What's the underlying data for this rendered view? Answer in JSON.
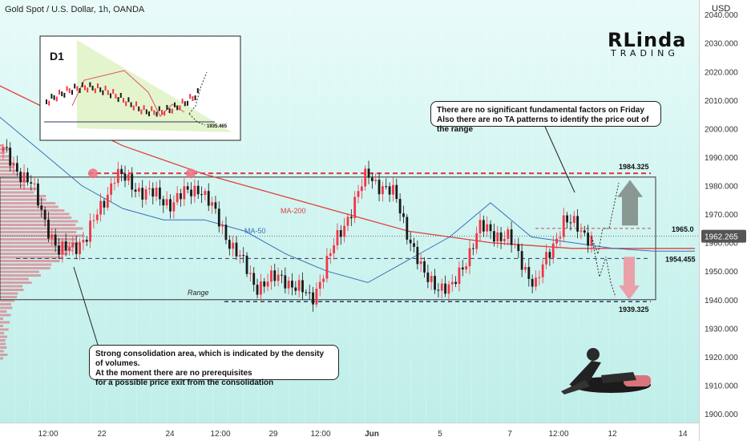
{
  "header": {
    "title": "Gold Spot / U.S. Dollar, 1h, OANDA"
  },
  "currency": "USD",
  "logo": {
    "main": "RLinda",
    "sub": "TRADING"
  },
  "inset": {
    "label": "D1",
    "price_label": "1935.465"
  },
  "notes": {
    "top_right": [
      "There are no significant fundamental factors on Friday",
      "Also there are no TA patterns to identify the price out of the range"
    ],
    "bottom_left": [
      "Strong consolidation area, which is indicated by the density of volumes.",
      "At the moment there are no prerequisites",
      "for a possible price exit from the consolidation"
    ]
  },
  "labels": {
    "ma200": "MA-200",
    "ma50": "MA-50",
    "range": "Range",
    "level_top": "1984.325",
    "level_mid_up": "1965.0",
    "level_mid_down": "1954.455",
    "level_bottom": "1939.325",
    "current_price": "1962.265"
  },
  "colors": {
    "bull": "#f23645",
    "bear": "#1a1a1a",
    "ma200": "#e04040",
    "ma50": "#3b6fb6",
    "level_red": "#e8323c",
    "level_dark": "#2b3a67",
    "up_arrow": "#8a9893",
    "down_arrow": "#e9a0a8",
    "volume": "#e05a6a"
  },
  "chart_data": {
    "type": "line",
    "title": "Gold Spot / U.S. Dollar, 1h, OANDA",
    "ylabel": "USD",
    "ylim": [
      1895,
      2045
    ],
    "y_ticks": [
      1900,
      1910,
      1920,
      1930,
      1940,
      1950,
      1960,
      1970,
      1980,
      1990,
      2000,
      2010,
      2020,
      2030,
      2040
    ],
    "x_ticks": [
      "12:00",
      "22",
      "24",
      "12:00",
      "29",
      "12:00",
      "Jun",
      "5",
      "7",
      "12:00",
      "12",
      "14"
    ],
    "levels": [
      {
        "label": "1984.325",
        "value": 1984.325
      },
      {
        "label": "1965.0",
        "value": 1965.0
      },
      {
        "label": "1954.455",
        "value": 1954.455
      },
      {
        "label": "1939.325",
        "value": 1939.325
      }
    ],
    "current_price": 1962.265,
    "range": {
      "label": "Range",
      "top": 1983,
      "bottom": 1940
    },
    "series": [
      {
        "name": "MA-200",
        "values": [
          2015,
          2008,
          2001,
          1994,
          1989,
          1984,
          1980,
          1976,
          1972,
          1968,
          1964,
          1962,
          1960,
          1959,
          1958,
          1958,
          1958,
          1958
        ]
      },
      {
        "name": "MA-50",
        "values": [
          2004,
          1992,
          1980,
          1972,
          1968,
          1968,
          1964,
          1956,
          1950,
          1946,
          1954,
          1962,
          1974,
          1962,
          1960,
          1958,
          1957,
          1957
        ]
      },
      {
        "name": "Price",
        "values": [
          1992,
          1980,
          1956,
          1962,
          1984,
          1978,
          1974,
          1980,
          1962,
          1945,
          1948,
          1940,
          1963,
          1984,
          1976,
          1948,
          1943,
          1965,
          1962,
          1945,
          1968,
          1962
        ]
      }
    ]
  }
}
